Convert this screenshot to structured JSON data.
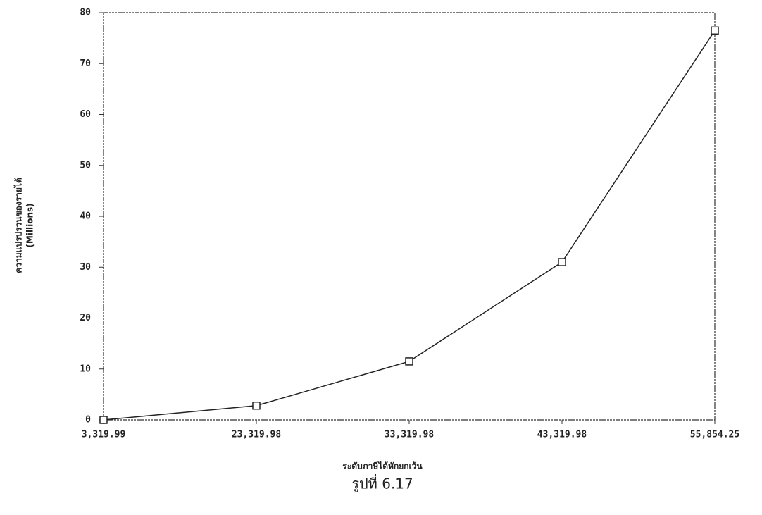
{
  "chart_data": {
    "type": "line",
    "categories": [
      "3,319.99",
      "23,319.98",
      "33,319.98",
      "43,319.98",
      "55,854.25"
    ],
    "series": [
      {
        "name": "",
        "color": "#222222",
        "values": [
          0,
          2.8,
          11.5,
          31,
          76.5
        ]
      }
    ],
    "ylim": [
      0,
      80
    ],
    "yticks": [
      0,
      10,
      20,
      30,
      40,
      50,
      60,
      70,
      80
    ],
    "ylabel": "ความแปรปรวนของรายได้",
    "ylabel_unit": "(Millions)",
    "xlabel": "ระดับภาษีได้หักยกเว้น",
    "caption": "รูปที่ 6.17",
    "marker": "square"
  }
}
